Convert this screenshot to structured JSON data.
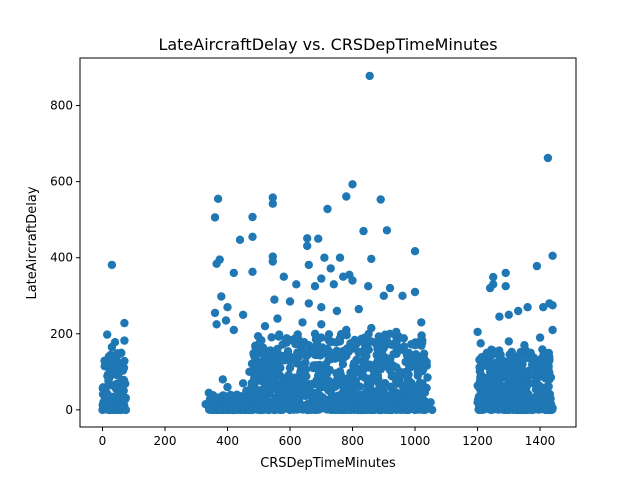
{
  "chart_data": {
    "type": "scatter",
    "title": "LateAircraftDelay vs. CRSDepTimeMinutes",
    "xlabel": "CRSDepTimeMinutes",
    "ylabel": "LateAircraftDelay",
    "xlim": [
      -72,
      1515
    ],
    "ylim": [
      -45,
      925
    ],
    "xticks": [
      0,
      200,
      400,
      600,
      800,
      1000,
      1200,
      1400
    ],
    "yticks": [
      0,
      200,
      400,
      600,
      800
    ],
    "xtick_labels": [
      "0",
      "200",
      "400",
      "600",
      "800",
      "1000",
      "1200",
      "1400"
    ],
    "ytick_labels": [
      "0",
      "200",
      "400",
      "600",
      "800"
    ],
    "grid": false,
    "legend": "none",
    "marker_color": "#1f77b4",
    "points": [
      [
        855,
        878
      ],
      [
        1425,
        662
      ],
      [
        800,
        593
      ],
      [
        545,
        558
      ],
      [
        780,
        561
      ],
      [
        545,
        542
      ],
      [
        370,
        555
      ],
      [
        890,
        553
      ],
      [
        720,
        528
      ],
      [
        360,
        506
      ],
      [
        480,
        507
      ],
      [
        910,
        472
      ],
      [
        835,
        470
      ],
      [
        690,
        450
      ],
      [
        655,
        451
      ],
      [
        480,
        455
      ],
      [
        440,
        447
      ],
      [
        655,
        431
      ],
      [
        1000,
        417
      ],
      [
        1440,
        405
      ],
      [
        545,
        403
      ],
      [
        375,
        395
      ],
      [
        710,
        400
      ],
      [
        760,
        400
      ],
      [
        860,
        397
      ],
      [
        30,
        381
      ],
      [
        365,
        384
      ],
      [
        545,
        390
      ],
      [
        1390,
        378
      ],
      [
        730,
        372
      ],
      [
        660,
        381
      ],
      [
        480,
        363
      ],
      [
        420,
        360
      ],
      [
        790,
        355
      ],
      [
        770,
        350
      ],
      [
        1250,
        349
      ],
      [
        1290,
        360
      ],
      [
        580,
        350
      ],
      [
        700,
        345
      ],
      [
        800,
        340
      ],
      [
        1250,
        330
      ],
      [
        1290,
        325
      ],
      [
        1240,
        320
      ],
      [
        620,
        330
      ],
      [
        680,
        325
      ],
      [
        740,
        330
      ],
      [
        850,
        325
      ],
      [
        920,
        320
      ],
      [
        380,
        298
      ],
      [
        550,
        290
      ],
      [
        600,
        285
      ],
      [
        660,
        280
      ],
      [
        700,
        270
      ],
      [
        750,
        260
      ],
      [
        820,
        265
      ],
      [
        900,
        300
      ],
      [
        960,
        300
      ],
      [
        1000,
        310
      ],
      [
        1430,
        280
      ],
      [
        1440,
        275
      ],
      [
        1410,
        270
      ],
      [
        1360,
        270
      ],
      [
        1330,
        260
      ],
      [
        1300,
        250
      ],
      [
        1270,
        245
      ],
      [
        360,
        255
      ],
      [
        400,
        270
      ],
      [
        450,
        250
      ],
      [
        520,
        220
      ],
      [
        560,
        240
      ],
      [
        640,
        230
      ],
      [
        700,
        225
      ],
      [
        780,
        210
      ],
      [
        860,
        215
      ],
      [
        940,
        205
      ],
      [
        1020,
        230
      ],
      [
        420,
        210
      ],
      [
        365,
        225
      ],
      [
        395,
        235
      ],
      [
        70,
        228
      ],
      [
        15,
        198
      ],
      [
        70,
        182
      ],
      [
        40,
        178
      ],
      [
        30,
        165
      ],
      [
        60,
        150
      ],
      [
        20,
        140
      ],
      [
        45,
        130
      ],
      [
        10,
        120
      ],
      [
        65,
        110
      ],
      [
        30,
        100
      ],
      [
        50,
        90
      ],
      [
        20,
        80
      ],
      [
        70,
        75
      ],
      [
        40,
        60
      ],
      [
        10,
        50
      ],
      [
        60,
        40
      ],
      [
        30,
        30
      ],
      [
        15,
        20
      ],
      [
        55,
        15
      ],
      [
        25,
        10
      ],
      [
        45,
        5
      ],
      [
        5,
        3
      ],
      [
        70,
        2
      ],
      [
        35,
        1
      ],
      [
        0,
        0
      ],
      [
        20,
        0
      ],
      [
        40,
        0
      ],
      [
        60,
        0
      ],
      [
        75,
        0
      ],
      [
        1200,
        205
      ],
      [
        1210,
        175
      ],
      [
        1230,
        150
      ],
      [
        1220,
        120
      ],
      [
        1240,
        100
      ],
      [
        1250,
        80
      ],
      [
        1230,
        60
      ],
      [
        1215,
        40
      ],
      [
        1200,
        20
      ],
      [
        1225,
        5
      ],
      [
        1245,
        0
      ],
      [
        1205,
        0
      ],
      [
        1300,
        180
      ],
      [
        1350,
        170
      ],
      [
        1400,
        190
      ],
      [
        1440,
        210
      ],
      [
        1370,
        150
      ],
      [
        1320,
        140
      ],
      [
        1280,
        130
      ],
      [
        1420,
        140
      ],
      [
        1390,
        120
      ],
      [
        1340,
        110
      ],
      [
        1260,
        100
      ],
      [
        1300,
        90
      ],
      [
        1430,
        80
      ],
      [
        1380,
        70
      ],
      [
        1350,
        60
      ],
      [
        1290,
        50
      ],
      [
        1250,
        40
      ],
      [
        1410,
        30
      ],
      [
        1330,
        20
      ],
      [
        1270,
        10
      ],
      [
        1440,
        5
      ],
      [
        1360,
        0
      ],
      [
        1300,
        0
      ],
      [
        1420,
        0
      ],
      [
        330,
        15
      ],
      [
        340,
        45
      ],
      [
        350,
        5
      ],
      [
        370,
        30
      ],
      [
        385,
        80
      ],
      [
        400,
        60
      ],
      [
        410,
        20
      ],
      [
        430,
        40
      ],
      [
        450,
        70
      ],
      [
        470,
        100
      ],
      [
        490,
        140
      ],
      [
        510,
        120
      ],
      [
        530,
        90
      ],
      [
        560,
        160
      ],
      [
        580,
        130
      ],
      [
        600,
        110
      ],
      [
        620,
        180
      ],
      [
        640,
        150
      ],
      [
        660,
        170
      ],
      [
        680,
        200
      ],
      [
        700,
        190
      ],
      [
        720,
        160
      ],
      [
        740,
        140
      ],
      [
        760,
        180
      ],
      [
        780,
        200
      ],
      [
        800,
        170
      ],
      [
        820,
        150
      ],
      [
        840,
        190
      ],
      [
        860,
        180
      ],
      [
        880,
        160
      ],
      [
        900,
        140
      ],
      [
        920,
        200
      ],
      [
        940,
        180
      ],
      [
        960,
        160
      ],
      [
        980,
        150
      ],
      [
        1000,
        170
      ],
      [
        1020,
        120
      ],
      [
        1040,
        85
      ],
      [
        1050,
        20
      ],
      [
        1055,
        0
      ],
      [
        460,
        50
      ],
      [
        500,
        30
      ],
      [
        540,
        60
      ],
      [
        570,
        40
      ],
      [
        610,
        70
      ],
      [
        650,
        50
      ],
      [
        690,
        90
      ],
      [
        730,
        60
      ],
      [
        770,
        80
      ],
      [
        810,
        100
      ],
      [
        850,
        70
      ],
      [
        890,
        110
      ],
      [
        930,
        90
      ],
      [
        970,
        60
      ],
      [
        1010,
        40
      ],
      [
        1030,
        10
      ],
      [
        620,
        10
      ],
      [
        680,
        5
      ],
      [
        760,
        0
      ],
      [
        840,
        0
      ],
      [
        920,
        0
      ],
      [
        1000,
        0
      ],
      [
        550,
        0
      ],
      [
        480,
        0
      ],
      [
        420,
        0
      ],
      [
        360,
        0
      ]
    ],
    "dense_regions": [
      {
        "x": [
          0,
          75
        ],
        "y": [
          0,
          150
        ]
      },
      {
        "x": [
          340,
          480
        ],
        "y": [
          0,
          40
        ]
      },
      {
        "x": [
          470,
          1040
        ],
        "y": [
          0,
          200
        ]
      },
      {
        "x": [
          1200,
          1440
        ],
        "y": [
          0,
          160
        ]
      }
    ]
  }
}
